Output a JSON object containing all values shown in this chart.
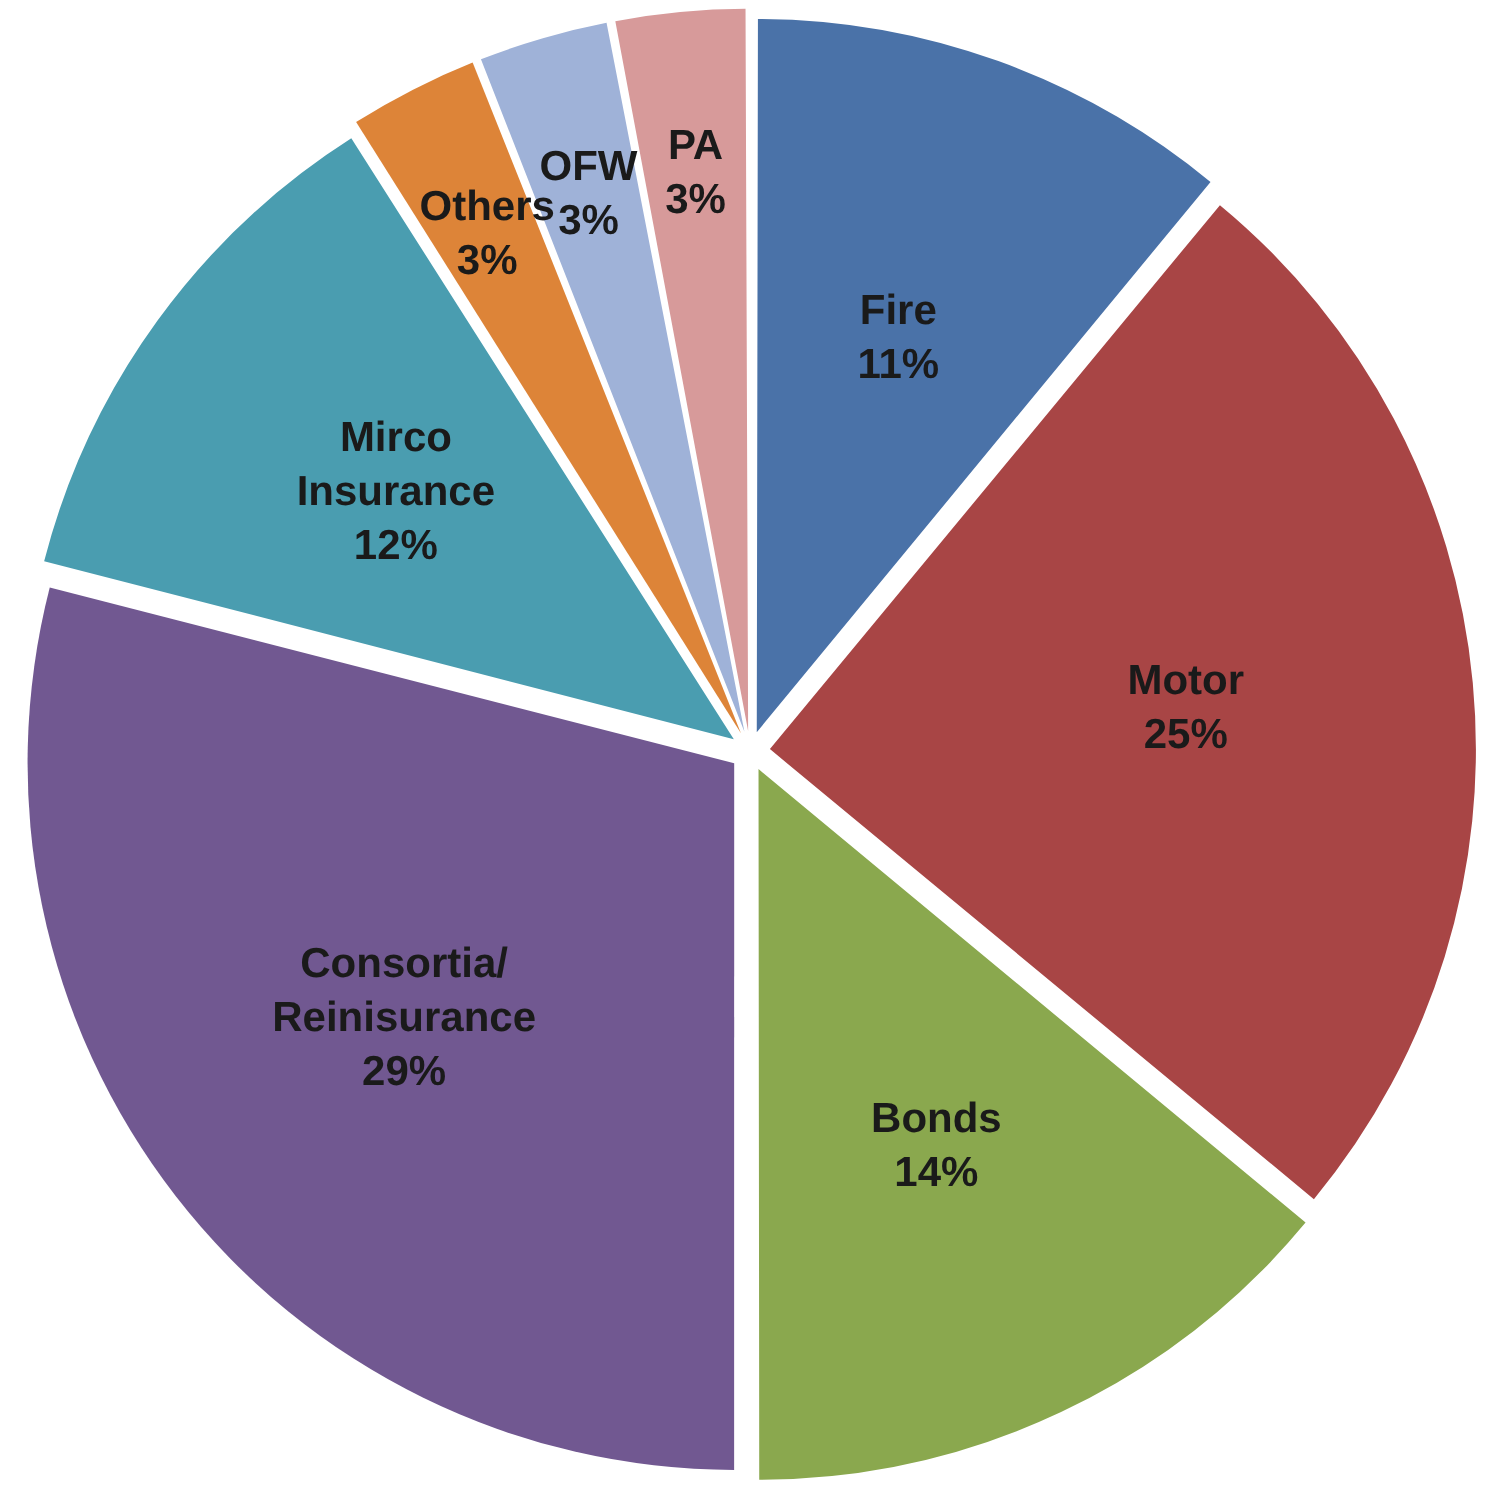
{
  "chart_data": {
    "type": "pie",
    "categories": [
      "Fire",
      "Motor",
      "Bonds",
      "Consortia/ Reinisurance",
      "Mirco Insurance",
      "Others",
      "OFW",
      "PA"
    ],
    "values": [
      11,
      25,
      14,
      29,
      12,
      3,
      3,
      3
    ],
    "colors": [
      "#4a72a8",
      "#a84545",
      "#8aa84e",
      "#715891",
      "#4a9db0",
      "#dd8438",
      "#9fb2d8",
      "#d79a9a"
    ],
    "value_labels": [
      "11%",
      "25%",
      "14%",
      "29%",
      "12%",
      "3%",
      "3%",
      "3%"
    ],
    "legend": false
  }
}
